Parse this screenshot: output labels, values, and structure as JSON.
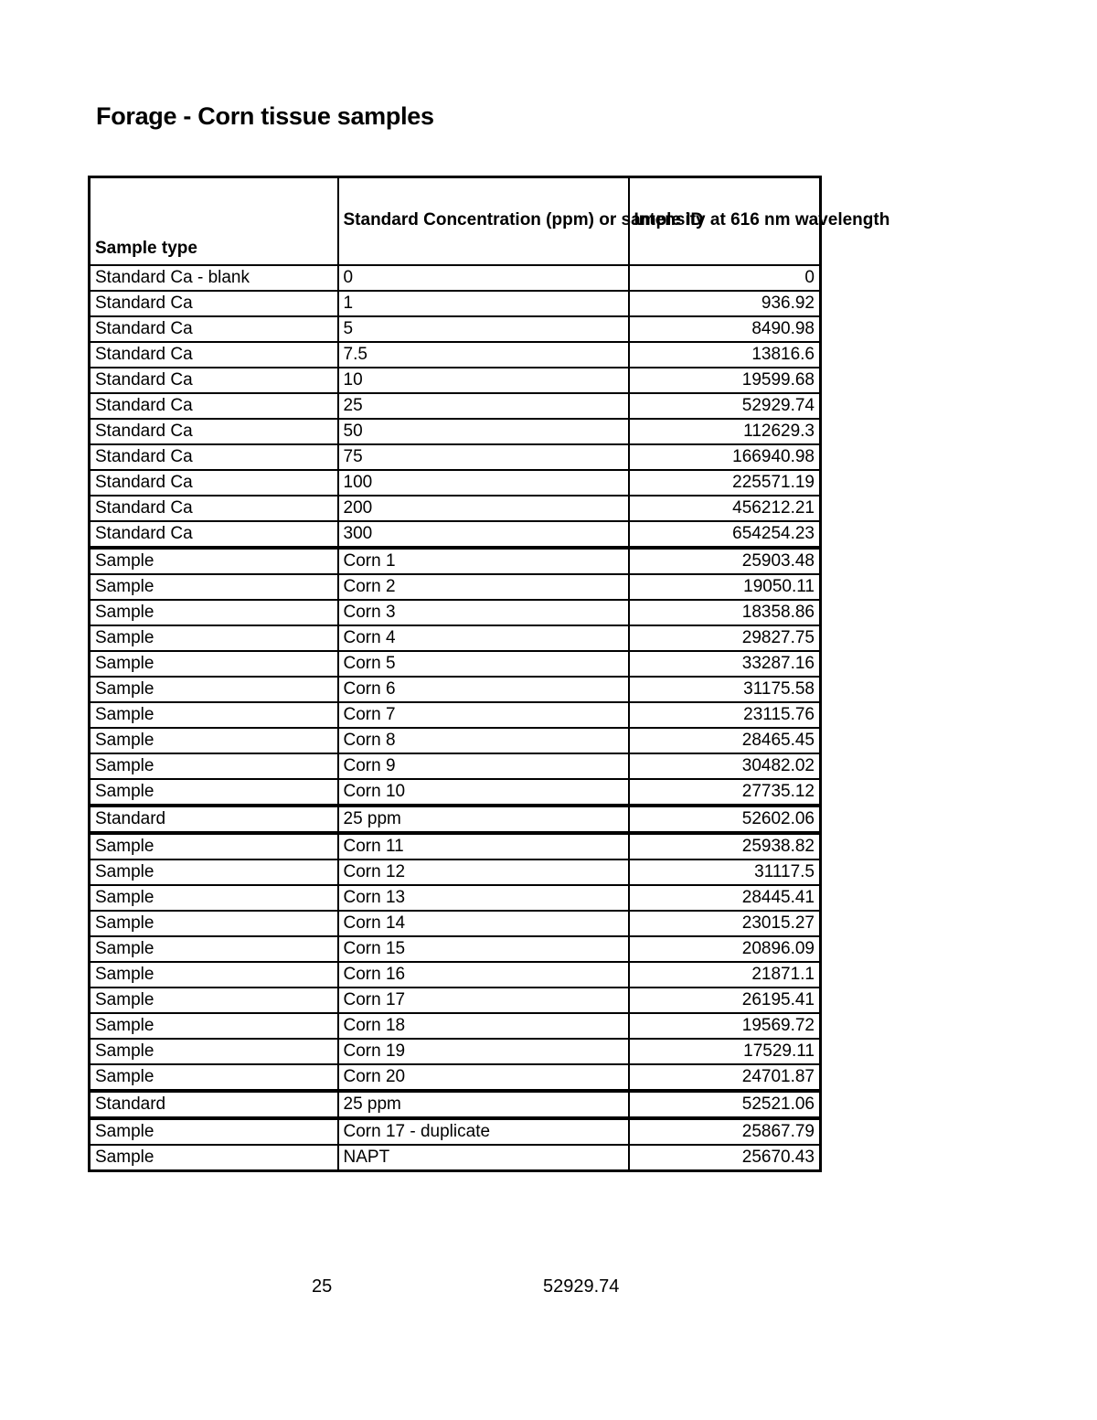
{
  "title": "Forage - Corn tissue samples",
  "table": {
    "headers": [
      "Sample type",
      "Standard Concentration (ppm) or sample ID",
      "Intensity at 616 nm wavelength"
    ],
    "rows": [
      [
        "Standard Ca - blank",
        "0",
        "0"
      ],
      [
        "Standard Ca",
        "1",
        "936.92"
      ],
      [
        "Standard Ca",
        "5",
        "8490.98"
      ],
      [
        "Standard Ca",
        "7.5",
        "13816.6"
      ],
      [
        "Standard Ca",
        "10",
        "19599.68"
      ],
      [
        "Standard Ca",
        "25",
        "52929.74"
      ],
      [
        "Standard Ca",
        "50",
        "112629.3"
      ],
      [
        "Standard Ca",
        "75",
        "166940.98"
      ],
      [
        "Standard Ca",
        "100",
        "225571.19"
      ],
      [
        "Standard Ca",
        "200",
        "456212.21"
      ],
      [
        "Standard Ca",
        "300",
        "654254.23"
      ],
      [
        "Sample",
        "Corn 1",
        "25903.48"
      ],
      [
        "Sample",
        "Corn 2",
        "19050.11"
      ],
      [
        "Sample",
        "Corn 3",
        "18358.86"
      ],
      [
        "Sample",
        "Corn 4",
        "29827.75"
      ],
      [
        "Sample",
        "Corn 5",
        "33287.16"
      ],
      [
        "Sample",
        "Corn 6",
        "31175.58"
      ],
      [
        "Sample",
        "Corn 7",
        "23115.76"
      ],
      [
        "Sample",
        "Corn 8",
        "28465.45"
      ],
      [
        "Sample",
        "Corn 9",
        "30482.02"
      ],
      [
        "Sample",
        "Corn 10",
        "27735.12"
      ],
      [
        "Standard",
        "25 ppm",
        "52602.06"
      ],
      [
        "Sample",
        "Corn 11",
        "25938.82"
      ],
      [
        "Sample",
        "Corn 12",
        "31117.5"
      ],
      [
        "Sample",
        "Corn 13",
        "28445.41"
      ],
      [
        "Sample",
        "Corn 14",
        "23015.27"
      ],
      [
        "Sample",
        "Corn 15",
        "20896.09"
      ],
      [
        "Sample",
        "Corn 16",
        "21871.1"
      ],
      [
        "Sample",
        "Corn 17",
        "26195.41"
      ],
      [
        "Sample",
        "Corn 18",
        "19569.72"
      ],
      [
        "Sample",
        "Corn 19",
        "17529.11"
      ],
      [
        "Sample",
        "Corn 20",
        "24701.87"
      ],
      [
        "Standard",
        "25 ppm",
        "52521.06"
      ],
      [
        "Sample",
        "Corn 17 - duplicate",
        "25867.79"
      ],
      [
        "Sample",
        "NAPT",
        "25670.43"
      ]
    ]
  },
  "footer": {
    "concentration": "25",
    "intensity": "52929.74"
  }
}
